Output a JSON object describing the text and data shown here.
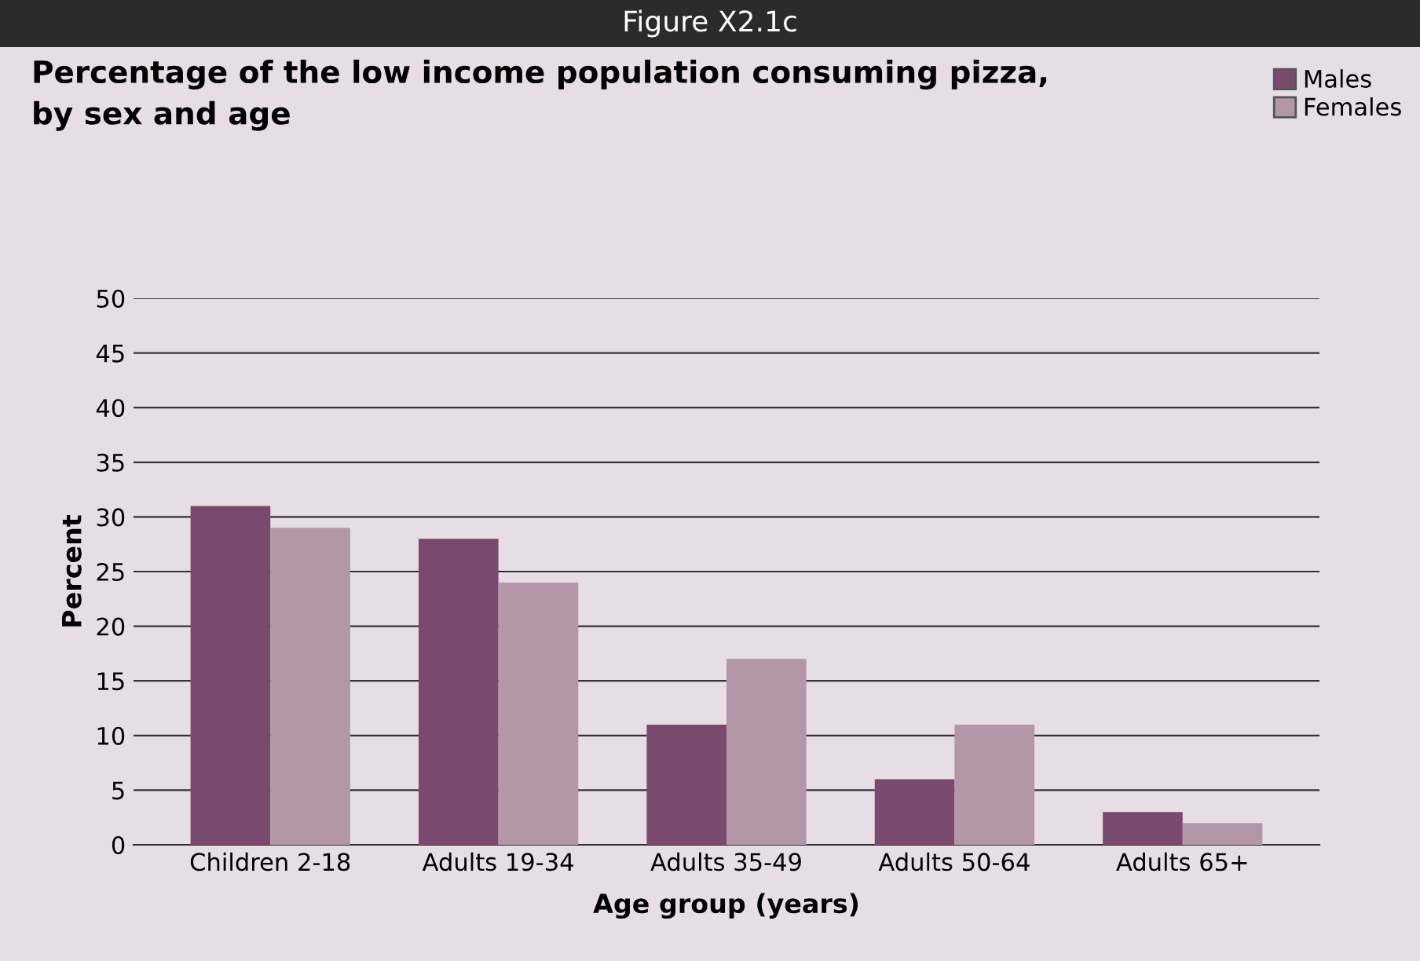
{
  "chart_data": {
    "type": "bar",
    "title": "Figure X2.1c",
    "subtitle": "Percentage of the low income population consuming pizza,\nby sex and age",
    "categories": [
      "Children 2-18",
      "Adults 19-34",
      "Adults 35-49",
      "Adults 50-64",
      "Adults 65+"
    ],
    "series": [
      {
        "name": "Males",
        "color": "#7a4a6e",
        "values": [
          31,
          28,
          11,
          6,
          3
        ]
      },
      {
        "name": "Females",
        "color": "#b396a8",
        "values": [
          29,
          24,
          17,
          11,
          2
        ]
      }
    ],
    "xlabel": "Age group (years)",
    "ylabel": "Percent",
    "ylim": [
      0,
      50
    ],
    "yticks": [
      0,
      5,
      10,
      15,
      20,
      25,
      30,
      35,
      40,
      45,
      50
    ],
    "grid": "y",
    "legend": "top right"
  }
}
